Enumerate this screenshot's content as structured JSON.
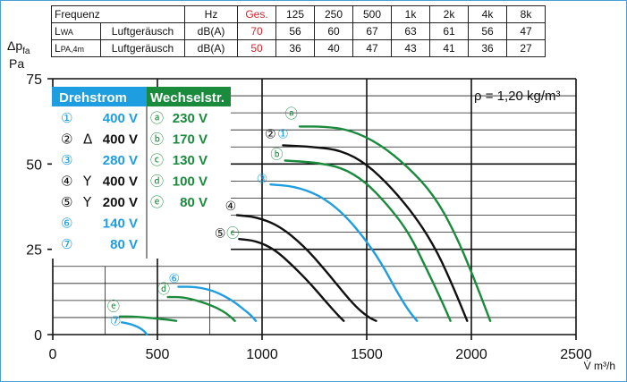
{
  "table": {
    "header": {
      "label": "Frequenz",
      "unit": "Hz",
      "ges": "Ges.",
      "bands": [
        "125",
        "250",
        "500",
        "1k",
        "2k",
        "4k",
        "8k"
      ]
    },
    "rows": [
      {
        "symbol": "L",
        "sub": "WA",
        "desc": "Luftgeräusch",
        "unit": "dB(A)",
        "ges": "70",
        "values": [
          "56",
          "60",
          "67",
          "63",
          "61",
          "56",
          "47"
        ]
      },
      {
        "symbol": "L",
        "sub": "PA,4m",
        "desc": "Luftgeräusch",
        "unit": "dB(A)",
        "ges": "50",
        "values": [
          "36",
          "40",
          "47",
          "43",
          "41",
          "36",
          "27"
        ]
      }
    ]
  },
  "colors": {
    "blue": "#1e9ee0",
    "green": "#1a8a3c",
    "black": "#111111",
    "red": "#d8232a"
  },
  "chart_data": {
    "type": "line",
    "y_axis": {
      "label_top": "Δp",
      "label_sub": "fa",
      "unit": "Pa",
      "range": [
        0,
        75
      ],
      "ticks": [
        0,
        25,
        50,
        75
      ]
    },
    "x_axis": {
      "label": "V̇ m³/h",
      "range": [
        0,
        2500
      ],
      "ticks": [
        0,
        500,
        1000,
        1500,
        2000,
        2500
      ]
    },
    "density_note": "ρ = 1,20 kg/m³",
    "legend": {
      "col1_title": "Drehstrom",
      "col2_title": "Wechselstr.",
      "col1": [
        {
          "marker": "①",
          "conn": "",
          "voltage": "400 V",
          "color": "blue"
        },
        {
          "marker": "②",
          "conn": "Δ",
          "voltage": "400 V",
          "color": "black"
        },
        {
          "marker": "③",
          "conn": "",
          "voltage": "280 V",
          "color": "blue"
        },
        {
          "marker": "④",
          "conn": "Y",
          "voltage": "400 V",
          "color": "black"
        },
        {
          "marker": "⑤",
          "conn": "Y",
          "voltage": "200 V",
          "color": "black"
        },
        {
          "marker": "⑥",
          "conn": "",
          "voltage": "140 V",
          "color": "blue"
        },
        {
          "marker": "⑦",
          "conn": "",
          "voltage": "80 V",
          "color": "blue"
        }
      ],
      "col2": [
        {
          "marker": "ⓐ",
          "voltage": "230 V",
          "color": "green"
        },
        {
          "marker": "ⓑ",
          "voltage": "170 V",
          "color": "green"
        },
        {
          "marker": "ⓒ",
          "voltage": "130 V",
          "color": "green"
        },
        {
          "marker": "ⓓ",
          "voltage": "100 V",
          "color": "green"
        },
        {
          "marker": "ⓔ",
          "voltage": "80 V",
          "color": "green"
        }
      ]
    },
    "series": [
      {
        "id": "a",
        "color": "green",
        "points": [
          [
            1180,
            61
          ],
          [
            1300,
            61
          ],
          [
            1420,
            60
          ],
          [
            1560,
            56
          ],
          [
            1700,
            49
          ],
          [
            1820,
            41
          ],
          [
            1920,
            30
          ],
          [
            2010,
            17
          ],
          [
            2090,
            4
          ]
        ]
      },
      {
        "id": "2",
        "color": "black",
        "points": [
          [
            1100,
            55.5
          ],
          [
            1250,
            55
          ],
          [
            1380,
            54
          ],
          [
            1500,
            50
          ],
          [
            1620,
            43
          ],
          [
            1740,
            34
          ],
          [
            1840,
            24
          ],
          [
            1920,
            13
          ],
          [
            1980,
            4
          ]
        ]
      },
      {
        "id": "b",
        "color": "green",
        "points": [
          [
            1110,
            51
          ],
          [
            1250,
            50.5
          ],
          [
            1380,
            49
          ],
          [
            1490,
            45
          ],
          [
            1600,
            38
          ],
          [
            1700,
            30
          ],
          [
            1780,
            20
          ],
          [
            1850,
            11
          ],
          [
            1900,
            4
          ]
        ]
      },
      {
        "id": "3",
        "color": "blue",
        "points": [
          [
            1040,
            44
          ],
          [
            1150,
            43.5
          ],
          [
            1270,
            41
          ],
          [
            1380,
            36
          ],
          [
            1480,
            29
          ],
          [
            1570,
            21
          ],
          [
            1640,
            13
          ],
          [
            1700,
            7
          ],
          [
            1740,
            4
          ]
        ]
      },
      {
        "id": "4",
        "color": "black",
        "points": [
          [
            880,
            35
          ],
          [
            970,
            34.5
          ],
          [
            1080,
            32
          ],
          [
            1200,
            26
          ],
          [
            1300,
            19
          ],
          [
            1380,
            13
          ],
          [
            1450,
            8
          ],
          [
            1510,
            5
          ],
          [
            1545,
            4
          ]
        ]
      },
      {
        "id": "5",
        "color": "black",
        "points": [
          [
            890,
            28
          ],
          [
            970,
            27.5
          ],
          [
            1060,
            25
          ],
          [
            1150,
            20
          ],
          [
            1230,
            15
          ],
          [
            1300,
            10
          ],
          [
            1350,
            6.5
          ],
          [
            1390,
            4
          ]
        ]
      },
      {
        "id": "6",
        "color": "blue",
        "points": [
          [
            600,
            14
          ],
          [
            680,
            14
          ],
          [
            760,
            13
          ],
          [
            830,
            11
          ],
          [
            880,
            9
          ],
          [
            920,
            7
          ],
          [
            950,
            5.5
          ],
          [
            970,
            4
          ]
        ]
      },
      {
        "id": "d",
        "color": "green",
        "points": [
          [
            550,
            11
          ],
          [
            620,
            11
          ],
          [
            690,
            10
          ],
          [
            760,
            8.5
          ],
          [
            810,
            7
          ],
          [
            845,
            5.5
          ],
          [
            870,
            4
          ]
        ]
      },
      {
        "id": "e",
        "color": "green",
        "points": [
          [
            320,
            5.3
          ],
          [
            380,
            5.3
          ],
          [
            450,
            5
          ],
          [
            510,
            4.6
          ],
          [
            560,
            4.3
          ],
          [
            590,
            4
          ]
        ]
      },
      {
        "id": "7",
        "color": "blue",
        "points": [
          [
            330,
            3.6
          ],
          [
            380,
            3
          ],
          [
            420,
            1.8
          ],
          [
            440,
            0.8
          ],
          [
            450,
            0
          ]
        ]
      }
    ],
    "curve_labels": [
      {
        "marker": "ⓐ",
        "color": "green",
        "at": [
          1140,
          63.5
        ]
      },
      {
        "marker": "②",
        "color": "black",
        "at": [
          1040,
          57.5
        ]
      },
      {
        "marker": "①",
        "color": "blue",
        "at": [
          1100,
          57.5
        ]
      },
      {
        "marker": "ⓑ",
        "color": "green",
        "at": [
          1070,
          51.5
        ]
      },
      {
        "marker": "③",
        "color": "blue",
        "at": [
          1000,
          44.5
        ]
      },
      {
        "marker": "④",
        "color": "black",
        "at": [
          850,
          36.5
        ]
      },
      {
        "marker": "⑤",
        "color": "black",
        "at": [
          800,
          28.5
        ]
      },
      {
        "marker": "ⓒ",
        "color": "green",
        "at": [
          860,
          28.5
        ]
      },
      {
        "marker": "⑥",
        "color": "blue",
        "at": [
          580,
          15.2
        ]
      },
      {
        "marker": "ⓓ",
        "color": "green",
        "at": [
          530,
          12
        ]
      },
      {
        "marker": "ⓔ",
        "color": "green",
        "at": [
          290,
          7
        ]
      },
      {
        "marker": "⑦",
        "color": "blue",
        "at": [
          300,
          2.8
        ]
      }
    ]
  }
}
